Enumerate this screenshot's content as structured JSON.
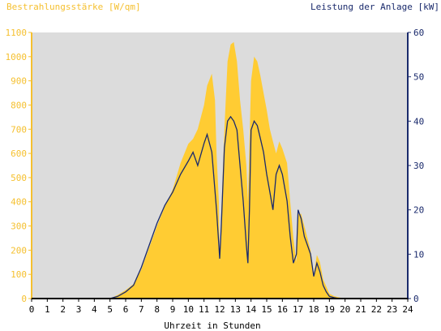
{
  "chart_data": {
    "type": "area",
    "title_left": "Bestrahlungsstärke [W/qm]",
    "title_right": "Leistung der Anlage [kW]",
    "xlabel": "Uhrzeit in Stunden",
    "xlim": [
      0,
      24
    ],
    "ylim_left": [
      0,
      1100
    ],
    "ylim_right": [
      0,
      60
    ],
    "x_ticks": [
      "0",
      "1",
      "2",
      "3",
      "4",
      "5",
      "6",
      "7",
      "8",
      "9",
      "10",
      "11",
      "12",
      "13",
      "14",
      "15",
      "16",
      "17",
      "18",
      "19",
      "20",
      "21",
      "22",
      "23",
      "24"
    ],
    "y_left_ticks": [
      "0",
      "100",
      "200",
      "300",
      "400",
      "500",
      "600",
      "700",
      "800",
      "900",
      "1000",
      "1100"
    ],
    "y_right_ticks": [
      "0",
      "10",
      "20",
      "30",
      "40",
      "50",
      "60"
    ],
    "grid": false,
    "colors": {
      "plot_background": "#dcdcdc",
      "irradiance_fill": "#ffcc33",
      "power_line": "#1a2a6c",
      "left_axis": "#f5c030",
      "right_axis": "#1a2a6c"
    },
    "series": [
      {
        "axis": "left",
        "style": "area",
        "x": [
          0,
          5,
          5.5,
          6,
          6.5,
          7,
          7.5,
          8,
          8.5,
          9,
          9.5,
          10,
          10.3,
          10.6,
          11,
          11.2,
          11.5,
          11.7,
          11.8,
          11.95,
          12,
          12.1,
          12.3,
          12.5,
          12.7,
          12.9,
          13.1,
          13.3,
          13.5,
          13.7,
          13.8,
          14,
          14.2,
          14.4,
          14.6,
          14.8,
          15,
          15.2,
          15.4,
          15.6,
          15.8,
          16,
          16.3,
          16.5,
          16.7,
          16.9,
          17,
          17.2,
          17.4,
          17.6,
          17.8,
          18,
          18.2,
          18.4,
          18.6,
          18.8,
          19,
          19.3,
          19.6,
          20,
          24
        ],
        "y": [
          0,
          0,
          15,
          35,
          60,
          120,
          210,
          300,
          380,
          450,
          560,
          640,
          660,
          700,
          800,
          880,
          930,
          820,
          600,
          400,
          150,
          350,
          700,
          980,
          1050,
          1060,
          980,
          820,
          700,
          550,
          400,
          900,
          1000,
          980,
          920,
          850,
          780,
          700,
          650,
          600,
          650,
          620,
          560,
          400,
          250,
          150,
          350,
          350,
          300,
          250,
          200,
          100,
          180,
          150,
          80,
          50,
          20,
          10,
          5,
          0,
          0
        ]
      },
      {
        "axis": "right",
        "style": "line",
        "x": [
          0,
          5,
          5.5,
          6,
          6.5,
          7,
          7.5,
          8,
          8.5,
          9,
          9.5,
          10,
          10.3,
          10.6,
          11,
          11.2,
          11.5,
          11.8,
          11.95,
          12,
          12.1,
          12.3,
          12.5,
          12.7,
          12.9,
          13.1,
          13.3,
          13.5,
          13.7,
          13.8,
          13.9,
          14,
          14.2,
          14.4,
          14.6,
          14.8,
          15,
          15.2,
          15.4,
          15.6,
          15.8,
          16,
          16.3,
          16.5,
          16.7,
          16.9,
          17,
          17.2,
          17.4,
          17.6,
          17.8,
          18,
          18.2,
          18.4,
          18.6,
          18.8,
          19,
          19.3,
          19.6,
          20,
          24
        ],
        "y": [
          0,
          0,
          0.5,
          1.5,
          3,
          7,
          12,
          17,
          21,
          24,
          28,
          31,
          33,
          30,
          35,
          37,
          33,
          20,
          12,
          9,
          16,
          34,
          40,
          41,
          40,
          38,
          30,
          22,
          12,
          8,
          20,
          38,
          40,
          39,
          36,
          33,
          28,
          24,
          20,
          28,
          30,
          28,
          22,
          14,
          8,
          10,
          20,
          18,
          14,
          12,
          10,
          5,
          8,
          6,
          3,
          1.5,
          0.5,
          0.2,
          0,
          0,
          0
        ]
      }
    ]
  }
}
